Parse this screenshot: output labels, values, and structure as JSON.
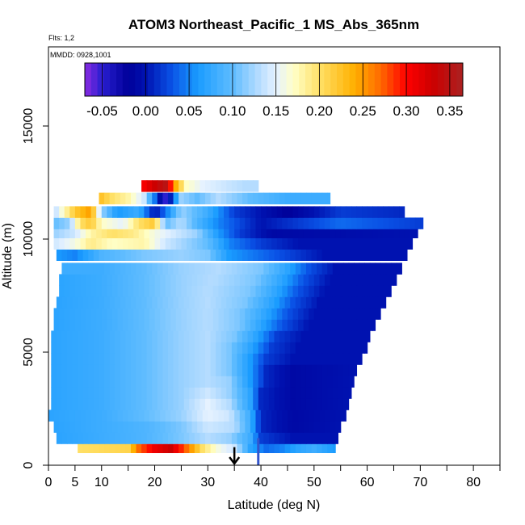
{
  "chart_data": {
    "type": "heatmap",
    "title": "ATOM3 Northeast_Pacific_1 MS_Abs_365nm",
    "flights_note": "Flts: 1,2",
    "date_note": "MMDD: 0928,1001",
    "xlabel": "Latitude (deg N)",
    "ylabel": "Altitude (m)",
    "xlim": [
      0,
      85
    ],
    "ylim": [
      0,
      18500
    ],
    "x_ticks": [
      0,
      5,
      10,
      20,
      30,
      40,
      50,
      60,
      70,
      80
    ],
    "x_minor_ticks": [
      15,
      25,
      35,
      45,
      55,
      65,
      75,
      85
    ],
    "y_ticks": [
      0,
      5000,
      10000,
      15000
    ],
    "colorbar": {
      "min": -0.07,
      "max": 0.365,
      "ticks": [
        -0.05,
        0.0,
        0.05,
        0.1,
        0.15,
        0.2,
        0.25,
        0.3,
        0.35
      ],
      "tick_labels": [
        "-0.05",
        "0.00",
        "0.05",
        "0.10",
        "0.15",
        "0.20",
        "0.25",
        "0.30",
        "0.35"
      ],
      "colormap": [
        [
          -0.07,
          "#8a2be2"
        ],
        [
          -0.05,
          "#2a1fd0"
        ],
        [
          -0.02,
          "#00009a"
        ],
        [
          0.0,
          "#0012b0"
        ],
        [
          0.03,
          "#0a52e6"
        ],
        [
          0.06,
          "#1a9cff"
        ],
        [
          0.1,
          "#5fbcff"
        ],
        [
          0.13,
          "#b5dcff"
        ],
        [
          0.15,
          "#e6f2ff"
        ],
        [
          0.17,
          "#ffffc8"
        ],
        [
          0.2,
          "#ffe066"
        ],
        [
          0.24,
          "#ffb000"
        ],
        [
          0.27,
          "#ff6a00"
        ],
        [
          0.3,
          "#ff0000"
        ],
        [
          0.33,
          "#cc0000"
        ],
        [
          0.365,
          "#aa2222"
        ]
      ]
    },
    "flight_track_marker_latitude": 35,
    "vertical_line_latitude": 39.5,
    "layers": [
      {
        "alt": 800,
        "lat_start": 5.5,
        "lat_end": 54,
        "stops": [
          [
            5.5,
            0.2
          ],
          [
            15,
            0.21
          ],
          [
            17,
            0.27
          ],
          [
            20,
            0.31
          ],
          [
            23,
            0.33
          ],
          [
            26,
            0.27
          ],
          [
            29,
            0.2
          ],
          [
            32,
            0.16
          ],
          [
            35,
            0.14
          ],
          [
            38,
            0.07
          ],
          [
            41,
            0.04
          ],
          [
            44,
            0.05
          ],
          [
            47,
            0.07
          ],
          [
            50,
            0.08
          ],
          [
            54,
            0.06
          ]
        ]
      },
      {
        "alt": 1200,
        "lat_start": 1.5,
        "lat_end": 54.5,
        "stops": [
          [
            1.5,
            0.07
          ],
          [
            10,
            0.08
          ],
          [
            18,
            0.09
          ],
          [
            25,
            0.11
          ],
          [
            30,
            0.13
          ],
          [
            34,
            0.12
          ],
          [
            38,
            0.08
          ],
          [
            40,
            0.02
          ],
          [
            46,
            0.0
          ],
          [
            54.5,
            0.0
          ]
        ]
      },
      {
        "alt": 1700,
        "lat_start": 1,
        "lat_end": 55,
        "stops": [
          [
            1,
            0.07
          ],
          [
            10,
            0.08
          ],
          [
            18,
            0.09
          ],
          [
            25,
            0.11
          ],
          [
            30,
            0.14
          ],
          [
            35,
            0.13
          ],
          [
            38,
            0.08
          ],
          [
            40,
            0.01
          ],
          [
            46,
            -0.01
          ],
          [
            55,
            0.0
          ]
        ]
      },
      {
        "alt": 2200,
        "lat_start": 0,
        "lat_end": 56,
        "stops": [
          [
            0,
            0.07
          ],
          [
            10,
            0.08
          ],
          [
            18,
            0.1
          ],
          [
            25,
            0.12
          ],
          [
            30,
            0.15
          ],
          [
            34,
            0.14
          ],
          [
            38,
            0.08
          ],
          [
            40,
            0.01
          ],
          [
            46,
            -0.01
          ],
          [
            56,
            0.0
          ]
        ]
      },
      {
        "alt": 2700,
        "lat_start": 0.5,
        "lat_end": 56.5,
        "stops": [
          [
            0.5,
            0.07
          ],
          [
            10,
            0.08
          ],
          [
            18,
            0.1
          ],
          [
            25,
            0.12
          ],
          [
            30,
            0.15
          ],
          [
            34,
            0.13
          ],
          [
            38,
            0.07
          ],
          [
            40,
            0.01
          ],
          [
            46,
            -0.01
          ],
          [
            56.5,
            0.0
          ]
        ]
      },
      {
        "alt": 3200,
        "lat_start": 0.5,
        "lat_end": 57,
        "stops": [
          [
            0.5,
            0.07
          ],
          [
            10,
            0.08
          ],
          [
            18,
            0.1
          ],
          [
            25,
            0.12
          ],
          [
            30,
            0.14
          ],
          [
            34,
            0.12
          ],
          [
            38,
            0.07
          ],
          [
            40,
            0.01
          ],
          [
            46,
            -0.01
          ],
          [
            57,
            0.0
          ]
        ]
      },
      {
        "alt": 3700,
        "lat_start": 0.5,
        "lat_end": 57.5,
        "stops": [
          [
            0.5,
            0.07
          ],
          [
            10,
            0.08
          ],
          [
            18,
            0.1
          ],
          [
            25,
            0.12
          ],
          [
            30,
            0.13
          ],
          [
            34,
            0.12
          ],
          [
            38,
            0.06
          ],
          [
            41,
            0.01
          ],
          [
            46,
            -0.01
          ],
          [
            57.5,
            0.0
          ]
        ]
      },
      {
        "alt": 4200,
        "lat_start": 0.5,
        "lat_end": 58,
        "stops": [
          [
            0.5,
            0.07
          ],
          [
            10,
            0.08
          ],
          [
            18,
            0.1
          ],
          [
            25,
            0.12
          ],
          [
            30,
            0.13
          ],
          [
            34,
            0.11
          ],
          [
            38,
            0.06
          ],
          [
            41,
            0.01
          ],
          [
            46,
            -0.01
          ],
          [
            58,
            0.0
          ]
        ]
      },
      {
        "alt": 4700,
        "lat_start": 0.5,
        "lat_end": 59,
        "stops": [
          [
            0.5,
            0.07
          ],
          [
            10,
            0.08
          ],
          [
            18,
            0.1
          ],
          [
            25,
            0.12
          ],
          [
            30,
            0.13
          ],
          [
            34,
            0.11
          ],
          [
            38,
            0.06
          ],
          [
            41,
            0.02
          ],
          [
            46,
            0.0
          ],
          [
            59,
            0.0
          ]
        ]
      },
      {
        "alt": 5200,
        "lat_start": 0.5,
        "lat_end": 60,
        "stops": [
          [
            0.5,
            0.07
          ],
          [
            10,
            0.08
          ],
          [
            18,
            0.1
          ],
          [
            25,
            0.12
          ],
          [
            30,
            0.13
          ],
          [
            34,
            0.11
          ],
          [
            38,
            0.07
          ],
          [
            42,
            0.02
          ],
          [
            47,
            0.0
          ],
          [
            60,
            0.0
          ]
        ]
      },
      {
        "alt": 5700,
        "lat_start": 0.5,
        "lat_end": 60.5,
        "stops": [
          [
            0.5,
            0.07
          ],
          [
            10,
            0.08
          ],
          [
            18,
            0.1
          ],
          [
            25,
            0.12
          ],
          [
            30,
            0.13
          ],
          [
            35,
            0.11
          ],
          [
            39,
            0.07
          ],
          [
            43,
            0.02
          ],
          [
            48,
            0.0
          ],
          [
            60.5,
            0.0
          ]
        ]
      },
      {
        "alt": 6200,
        "lat_start": 1,
        "lat_end": 61.5,
        "stops": [
          [
            1,
            0.07
          ],
          [
            10,
            0.08
          ],
          [
            18,
            0.1
          ],
          [
            25,
            0.12
          ],
          [
            30,
            0.13
          ],
          [
            36,
            0.11
          ],
          [
            40,
            0.07
          ],
          [
            44,
            0.03
          ],
          [
            49,
            0.0
          ],
          [
            61.5,
            0.0
          ]
        ]
      },
      {
        "alt": 6700,
        "lat_start": 1,
        "lat_end": 62.5,
        "stops": [
          [
            1,
            0.07
          ],
          [
            10,
            0.08
          ],
          [
            18,
            0.1
          ],
          [
            25,
            0.12
          ],
          [
            30,
            0.13
          ],
          [
            36,
            0.11
          ],
          [
            41,
            0.07
          ],
          [
            45,
            0.03
          ],
          [
            50,
            0.0
          ],
          [
            62.5,
            0.0
          ]
        ]
      },
      {
        "alt": 7200,
        "lat_start": 1.5,
        "lat_end": 63.5,
        "stops": [
          [
            1.5,
            0.07
          ],
          [
            10,
            0.08
          ],
          [
            18,
            0.1
          ],
          [
            25,
            0.12
          ],
          [
            30,
            0.13
          ],
          [
            37,
            0.11
          ],
          [
            42,
            0.07
          ],
          [
            46,
            0.03
          ],
          [
            51,
            0.0
          ],
          [
            63.5,
            0.0
          ]
        ]
      },
      {
        "alt": 7700,
        "lat_start": 2,
        "lat_end": 64.5,
        "stops": [
          [
            2,
            0.07
          ],
          [
            10,
            0.08
          ],
          [
            18,
            0.1
          ],
          [
            25,
            0.12
          ],
          [
            30,
            0.13
          ],
          [
            38,
            0.11
          ],
          [
            43,
            0.07
          ],
          [
            47,
            0.03
          ],
          [
            52,
            0.0
          ],
          [
            64.5,
            0.0
          ]
        ]
      },
      {
        "alt": 8200,
        "lat_start": 2,
        "lat_end": 65.5,
        "stops": [
          [
            2,
            0.07
          ],
          [
            10,
            0.08
          ],
          [
            18,
            0.1
          ],
          [
            25,
            0.12
          ],
          [
            31,
            0.13
          ],
          [
            39,
            0.11
          ],
          [
            44,
            0.07
          ],
          [
            48,
            0.03
          ],
          [
            53,
            0.0
          ],
          [
            65.5,
            0.0
          ]
        ]
      },
      {
        "alt": 8700,
        "lat_start": 2.5,
        "lat_end": 66.5,
        "stops": [
          [
            2.5,
            0.08
          ],
          [
            10,
            0.08
          ],
          [
            18,
            0.1
          ],
          [
            25,
            0.12
          ],
          [
            32,
            0.13
          ],
          [
            40,
            0.11
          ],
          [
            45,
            0.07
          ],
          [
            49,
            0.03
          ],
          [
            54,
            0.0
          ],
          [
            66.5,
            0.0
          ]
        ]
      },
      {
        "alt": 9300,
        "lat_start": 1.5,
        "lat_end": 67.5,
        "stops": [
          [
            1.5,
            0.06
          ],
          [
            5,
            0.05
          ],
          [
            10,
            0.09
          ],
          [
            18,
            0.11
          ],
          [
            25,
            0.12
          ],
          [
            30,
            0.11
          ],
          [
            34,
            0.06
          ],
          [
            40,
            0.04
          ],
          [
            46,
            0.02
          ],
          [
            52,
            0.0
          ],
          [
            67.5,
            0.0
          ]
        ]
      },
      {
        "alt": 9800,
        "lat_start": 1,
        "lat_end": 68.5,
        "stops": [
          [
            1,
            0.14
          ],
          [
            5,
            0.16
          ],
          [
            8,
            0.19
          ],
          [
            12,
            0.17
          ],
          [
            18,
            0.18
          ],
          [
            22,
            0.14
          ],
          [
            26,
            0.12
          ],
          [
            30,
            0.1
          ],
          [
            34,
            0.05
          ],
          [
            40,
            0.02
          ],
          [
            47,
            0.0
          ],
          [
            68.5,
            0.0
          ]
        ]
      },
      {
        "alt": 10300,
        "lat_start": 1,
        "lat_end": 69.5,
        "stops": [
          [
            1,
            0.12
          ],
          [
            5,
            0.14
          ],
          [
            8,
            0.18
          ],
          [
            12,
            0.2
          ],
          [
            16,
            0.19
          ],
          [
            20,
            0.16
          ],
          [
            24,
            0.14
          ],
          [
            28,
            0.12
          ],
          [
            32,
            0.06
          ],
          [
            36,
            0.02
          ],
          [
            42,
            -0.01
          ],
          [
            69.5,
            0.0
          ]
        ]
      },
      {
        "alt": 10700,
        "lat_start": 1,
        "lat_end": 70.5,
        "stops": [
          [
            1,
            0.1
          ],
          [
            4,
            0.12
          ],
          [
            6,
            0.2
          ],
          [
            8,
            0.22
          ],
          [
            10,
            0.17
          ],
          [
            14,
            0.15
          ],
          [
            17,
            0.2
          ],
          [
            20,
            0.22
          ],
          [
            22,
            0.1
          ],
          [
            25,
            0.13
          ],
          [
            28,
            0.09
          ],
          [
            32,
            0.05
          ],
          [
            40,
            0.0
          ],
          [
            55,
            0.04
          ],
          [
            70.5,
            0.02
          ]
        ]
      },
      {
        "alt": 11200,
        "lat_start": 1,
        "lat_end": 67,
        "stops": [
          [
            1,
            0.13
          ],
          [
            5,
            0.22
          ],
          [
            8,
            0.25
          ],
          [
            10,
            0.12
          ],
          [
            13,
            0.06
          ],
          [
            17,
            0.08
          ],
          [
            20,
            0.0
          ],
          [
            22,
            0.04
          ],
          [
            25,
            0.12
          ],
          [
            30,
            0.08
          ],
          [
            35,
            0.02
          ],
          [
            45,
            -0.02
          ],
          [
            55,
            0.02
          ],
          [
            67,
            0.01
          ]
        ]
      },
      {
        "alt": 11800,
        "lat_start": 9.5,
        "lat_end": 53,
        "stops": [
          [
            9.5,
            0.23
          ],
          [
            12,
            0.2
          ],
          [
            15,
            0.18
          ],
          [
            18,
            0.14
          ],
          [
            22,
            -0.05
          ],
          [
            25,
            0.12
          ],
          [
            28,
            0.1
          ],
          [
            32,
            0.13
          ],
          [
            38,
            0.1
          ],
          [
            45,
            0.08
          ],
          [
            53,
            0.08
          ]
        ]
      },
      {
        "alt": 12350,
        "lat_start": 17.5,
        "lat_end": 39.5,
        "stops": [
          [
            17.5,
            0.3
          ],
          [
            20,
            0.33
          ],
          [
            22,
            0.35
          ],
          [
            24,
            0.24
          ],
          [
            26,
            0.17
          ],
          [
            29,
            0.15
          ],
          [
            33,
            0.14
          ],
          [
            37,
            0.13
          ],
          [
            39.5,
            0.13
          ]
        ]
      }
    ]
  }
}
